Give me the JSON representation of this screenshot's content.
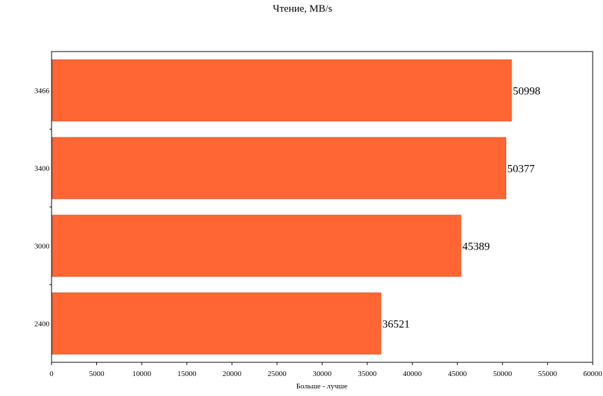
{
  "chart_data": {
    "type": "bar",
    "orientation": "horizontal",
    "title": "Чтение, MB/s",
    "xlabel": "Больше - лучше",
    "ylabel": "",
    "categories": [
      "3466",
      "3400",
      "3000",
      "2400"
    ],
    "values": [
      50998,
      50377,
      45389,
      36521
    ],
    "xlim": [
      0,
      60000
    ],
    "xticks": [
      0,
      5000,
      10000,
      15000,
      20000,
      25000,
      30000,
      35000,
      40000,
      45000,
      50000,
      55000,
      60000
    ],
    "bar_color": "#ff6633",
    "grid": false,
    "legend": "none"
  }
}
